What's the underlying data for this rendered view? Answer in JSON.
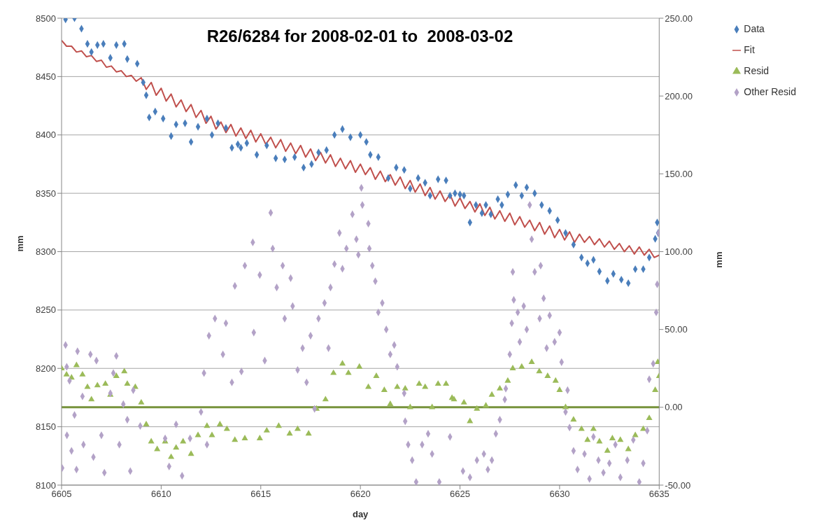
{
  "chart_data": {
    "type": "scatter",
    "title": "R26/6284 for 2008-02-01 to  2008-03-02",
    "xlabel": "day",
    "ylabel": "mm",
    "y2label": "mm",
    "xlim": [
      6605,
      6635
    ],
    "xticks": [
      6605,
      6610,
      6615,
      6620,
      6625,
      6630,
      6635
    ],
    "ylim": [
      8100,
      8500
    ],
    "yticks": [
      8100,
      8150,
      8200,
      8250,
      8300,
      8350,
      8400,
      8450,
      8500
    ],
    "y2lim": [
      -50,
      250
    ],
    "y2ticks": [
      {
        "value": -50,
        "label": "-50.00"
      },
      {
        "value": 0,
        "label": "0.00"
      },
      {
        "value": 50,
        "label": "50.00"
      },
      {
        "value": 100,
        "label": "100.00"
      },
      {
        "value": 150,
        "label": "150.00"
      },
      {
        "value": 200,
        "label": "200.00"
      },
      {
        "value": 250,
        "label": "250.00"
      }
    ],
    "grid": "y",
    "legend": "top right",
    "ref_lines": [
      {
        "axis": "y2",
        "value": 0,
        "color": "#77933c"
      }
    ],
    "series": [
      {
        "name": "Data",
        "marker": "diamond",
        "color": "#4a7ebb",
        "x": [
          6605.2,
          6605.65,
          6606.0,
          6606.3,
          6606.5,
          6606.8,
          6607.1,
          6607.45,
          6607.75,
          6608.15,
          6608.3,
          6608.8,
          6609.1,
          6609.25,
          6609.4,
          6609.7,
          6610.1,
          6610.5,
          6610.75,
          6611.2,
          6611.5,
          6611.85,
          6612.3,
          6612.55,
          6612.85,
          6613.25,
          6613.55,
          6613.85,
          6614.0,
          6614.3,
          6614.8,
          6615.3,
          6615.75,
          6616.2,
          6616.7,
          6617.15,
          6617.55,
          6617.9,
          6618.3,
          6618.7,
          6619.1,
          6619.5,
          6620.0,
          6620.3,
          6620.5,
          6620.9,
          6621.4,
          6621.8,
          6622.2,
          6622.5,
          6622.9,
          6623.25,
          6623.5,
          6623.9,
          6624.3,
          6624.5,
          6624.75,
          6625.0,
          6625.2,
          6625.5,
          6625.8,
          6626.1,
          6626.3,
          6626.55,
          6626.9,
          6627.1,
          6627.4,
          6627.8,
          6628.1,
          6628.35,
          6628.75,
          6629.1,
          6629.5,
          6629.9,
          6630.3,
          6630.7,
          6631.1,
          6631.4,
          6631.7,
          6632.0,
          6632.4,
          6632.7,
          6633.1,
          6633.45,
          6633.8,
          6634.2,
          6634.5,
          6634.8,
          6634.9,
          6634.95
        ],
        "values": [
          8499,
          8500,
          8491,
          8478,
          8471,
          8477,
          8478,
          8466,
          8477,
          8478,
          8465,
          8461,
          8445,
          8434,
          8415,
          8420,
          8414,
          8399,
          8409,
          8410,
          8394,
          8407,
          8414,
          8400,
          8410,
          8406,
          8389,
          8392,
          8389,
          8393,
          8383,
          8391,
          8380,
          8379,
          8381,
          8372,
          8375,
          8385,
          8387,
          8400,
          8405,
          8398,
          8400,
          8394,
          8383,
          8381,
          8363,
          8372,
          8370,
          8354,
          8363,
          8359,
          8348,
          8362,
          8361,
          8348,
          8350,
          8349,
          8348,
          8325,
          8340,
          8333,
          8340,
          8332,
          8345,
          8340,
          8349,
          8357,
          8348,
          8355,
          8350,
          8340,
          8335,
          8327,
          8316,
          8306,
          8295,
          8290,
          8293,
          8283,
          8275,
          8281,
          8276,
          8273,
          8285,
          8285,
          8295,
          8311,
          8325,
          8316
        ]
      },
      {
        "name": "Fit",
        "type": "line",
        "line_style": "solid",
        "color": "#c0504d",
        "x": [
          6605,
          6605.25,
          6605.5,
          6605.75,
          6606,
          6606.25,
          6606.5,
          6606.75,
          6607,
          6607.25,
          6607.5,
          6607.75,
          6608,
          6608.25,
          6608.5,
          6608.75,
          6609,
          6609.25,
          6609.5,
          6609.75,
          6610,
          6610.25,
          6610.5,
          6610.75,
          6611,
          6611.25,
          6611.5,
          6611.75,
          6612,
          6612.25,
          6612.5,
          6612.75,
          6613,
          6613.25,
          6613.5,
          6613.75,
          6614,
          6614.25,
          6614.5,
          6614.75,
          6615,
          6615.25,
          6615.5,
          6615.75,
          6616,
          6616.25,
          6616.5,
          6616.75,
          6617,
          6617.25,
          6617.5,
          6617.75,
          6618,
          6618.25,
          6618.5,
          6618.75,
          6619,
          6619.25,
          6619.5,
          6619.75,
          6620,
          6620.25,
          6620.5,
          6620.75,
          6621,
          6621.25,
          6621.5,
          6621.75,
          6622,
          6622.25,
          6622.5,
          6622.75,
          6623,
          6623.25,
          6623.5,
          6623.75,
          6624,
          6624.25,
          6624.5,
          6624.75,
          6625,
          6625.25,
          6625.5,
          6625.75,
          6626,
          6626.25,
          6626.5,
          6626.75,
          6627,
          6627.25,
          6627.5,
          6627.75,
          6628,
          6628.25,
          6628.5,
          6628.75,
          6629,
          6629.25,
          6629.5,
          6629.75,
          6630,
          6630.25,
          6630.5,
          6630.75,
          6631,
          6631.25,
          6631.5,
          6631.75,
          6632,
          6632.25,
          6632.5,
          6632.75,
          6633,
          6633.25,
          6633.5,
          6633.75,
          6634,
          6634.25,
          6634.5,
          6634.75,
          6635
        ],
        "values": [
          8481,
          8476,
          8476,
          8471,
          8472,
          8467,
          8468,
          8463,
          8464,
          8458,
          8459,
          8454,
          8455,
          8450,
          8451,
          8446,
          8449,
          8439,
          8445,
          8434,
          8440,
          8429,
          8435,
          8424,
          8430,
          8420,
          8426,
          8415,
          8421,
          8410,
          8416,
          8405,
          8411,
          8402,
          8409,
          8399,
          8406,
          8397,
          8404,
          8394,
          8401,
          8392,
          8398,
          8389,
          8396,
          8386,
          8393,
          8384,
          8391,
          8381,
          8388,
          8378,
          8385,
          8376,
          8383,
          8373,
          8380,
          8371,
          8378,
          8368,
          8375,
          8366,
          8372,
          8362,
          8369,
          8360,
          8366,
          8357,
          8364,
          8354,
          8361,
          8351,
          8358,
          8348,
          8355,
          8345,
          8352,
          8343,
          8349,
          8339,
          8346,
          8337,
          8343,
          8334,
          8341,
          8331,
          8338,
          8328,
          8335,
          8326,
          8333,
          8323,
          8330,
          8321,
          8327,
          8318,
          8325,
          8315,
          8322,
          8312,
          8319,
          8310,
          8317,
          8308,
          8315,
          8308,
          8313,
          8306,
          8311,
          8304,
          8309,
          8302,
          8307,
          8300,
          8305,
          8298,
          8304,
          8297,
          8302,
          8295,
          8297
        ]
      },
      {
        "name": "Resid",
        "marker": "triangle",
        "axis": "y2",
        "color": "#9bbb59",
        "x": [
          6605.0,
          6605.25,
          6605.5,
          6605.75,
          6606.05,
          6606.3,
          6606.5,
          6606.8,
          6607.2,
          6607.45,
          6607.75,
          6608.15,
          6608.3,
          6608.7,
          6609.0,
          6609.25,
          6609.5,
          6609.8,
          6610.2,
          6610.5,
          6610.75,
          6611.1,
          6611.5,
          6611.85,
          6612.3,
          6612.55,
          6612.95,
          6613.3,
          6613.7,
          6614.2,
          6614.95,
          6615.3,
          6615.9,
          6616.45,
          6616.85,
          6617.4,
          6617.8,
          6618.25,
          6618.65,
          6619.1,
          6619.4,
          6619.95,
          6620.4,
          6620.8,
          6621.2,
          6621.5,
          6621.85,
          6622.25,
          6622.5,
          6622.95,
          6623.25,
          6623.6,
          6623.9,
          6624.3,
          6624.6,
          6624.7,
          6625.2,
          6625.5,
          6625.85,
          6626.3,
          6626.6,
          6627.0,
          6627.4,
          6627.65,
          6628.1,
          6628.6,
          6628.98,
          6629.4,
          6629.8,
          6630.0,
          6630.3,
          6630.7,
          6631.1,
          6631.4,
          6631.7,
          6632.0,
          6632.4,
          6632.65,
          6633.05,
          6633.45,
          6633.8,
          6634.2,
          6634.5,
          6634.8,
          6634.93,
          6635.0
        ],
        "values": [
          25,
          21,
          19,
          27,
          21,
          13,
          5,
          14,
          15,
          8,
          20,
          23,
          15,
          13,
          3,
          -11,
          -22,
          -27,
          -22,
          -32,
          -26,
          -22,
          -30,
          -18,
          -12,
          -18,
          -11,
          -14,
          -21,
          -20,
          -20,
          -15,
          -12,
          -17,
          -14,
          -17,
          -1,
          5,
          22,
          28,
          22,
          26,
          13,
          20,
          11,
          2,
          13,
          12,
          0,
          15,
          13,
          0,
          15,
          15,
          6,
          5,
          3,
          -9,
          -1,
          1,
          8,
          12,
          17,
          25,
          26,
          29,
          23,
          20,
          17,
          11,
          0,
          -8,
          -14,
          -21,
          -14,
          -22,
          -28,
          -20,
          -21,
          -27,
          -18,
          -14,
          -7,
          11,
          29,
          20
        ]
      },
      {
        "name": "Other Resid",
        "marker": "diamond",
        "axis": "y2",
        "color": "#b3a2c7",
        "x": [
          6605.03,
          6605.2,
          6605.26,
          6605.4,
          6605.27,
          6605.5,
          6605.65,
          6605.75,
          6605.8,
          6606.05,
          6606.1,
          6606.45,
          6606.6,
          6606.75,
          6607.0,
          6607.15,
          6607.45,
          6607.6,
          6607.75,
          6607.9,
          6608.1,
          6608.3,
          6608.45,
          6608.6,
          6608.95,
          6610.2,
          6610.4,
          6610.75,
          6611.05,
          6611.45,
          6612.0,
          6612.3,
          6612.15,
          6612.4,
          6612.7,
          6613.1,
          6613.25,
          6613.55,
          6613.7,
          6614.03,
          6614.2,
          6614.6,
          6614.65,
          6614.95,
          6615.2,
          6615.5,
          6615.6,
          6615.8,
          6616.1,
          6616.2,
          6616.5,
          6616.6,
          6616.85,
          6617.1,
          6617.3,
          6617.5,
          6617.7,
          6617.9,
          6618.2,
          6618.4,
          6618.5,
          6618.7,
          6618.95,
          6619.1,
          6619.3,
          6619.6,
          6619.8,
          6619.9,
          6620.05,
          6620.1,
          6620.4,
          6620.45,
          6620.6,
          6620.75,
          6620.9,
          6621.1,
          6621.3,
          6621.5,
          6621.7,
          6621.85,
          6622.2,
          6622.25,
          6622.4,
          6622.6,
          6622.8,
          6623.1,
          6623.4,
          6623.6,
          6623.96,
          6624.5,
          6625.15,
          6625.5,
          6625.85,
          6626.2,
          6626.4,
          6626.6,
          6626.8,
          6627.0,
          6627.25,
          6627.3,
          6627.5,
          6627.6,
          6627.65,
          6627.7,
          6627.9,
          6628.0,
          6628.2,
          6628.35,
          6628.5,
          6628.6,
          6628.75,
          6629.0,
          6629.05,
          6629.2,
          6629.35,
          6629.5,
          6629.75,
          6630.0,
          6630.1,
          6630.4,
          6630.3,
          6630.5,
          6630.7,
          6630.9,
          6631.25,
          6631.5,
          6631.7,
          6631.95,
          6632.2,
          6632.5,
          6632.8,
          6633.05,
          6633.4,
          6633.7,
          6634.0,
          6634.2,
          6634.4,
          6634.5,
          6634.7,
          6634.85,
          6634.9,
          6634.97
        ],
        "values": [
          -39,
          40,
          26,
          17,
          -18,
          -28,
          -5,
          -40,
          36,
          7,
          -24,
          34,
          -32,
          30,
          -18,
          -42,
          9,
          22,
          33,
          -24,
          2,
          -8,
          -41,
          11,
          -12,
          -20,
          -38,
          -11,
          -44,
          -20,
          -3,
          -24,
          22,
          46,
          57,
          34,
          54,
          16,
          78,
          23,
          91,
          106,
          48,
          85,
          30,
          125,
          102,
          77,
          91,
          57,
          83,
          65,
          24,
          38,
          16,
          46,
          -1,
          57,
          67,
          38,
          77,
          92,
          112,
          89,
          102,
          124,
          108,
          98,
          141,
          130,
          118,
          102,
          91,
          81,
          61,
          67,
          50,
          34,
          40,
          26,
          9,
          -9,
          -24,
          -34,
          -48,
          -24,
          -17,
          -30,
          -48,
          -19,
          -41,
          -45,
          -34,
          -30,
          -40,
          -34,
          -17,
          -8,
          5,
          12,
          34,
          54,
          87,
          69,
          61,
          42,
          65,
          50,
          130,
          108,
          87,
          57,
          91,
          70,
          38,
          59,
          42,
          48,
          29,
          11,
          -3,
          -13,
          -28,
          -40,
          -30,
          -46,
          -19,
          -34,
          -42,
          -36,
          -24,
          -45,
          -34,
          -21,
          -48,
          -36,
          -15,
          18,
          28,
          61,
          79,
          112
        ]
      }
    ]
  }
}
